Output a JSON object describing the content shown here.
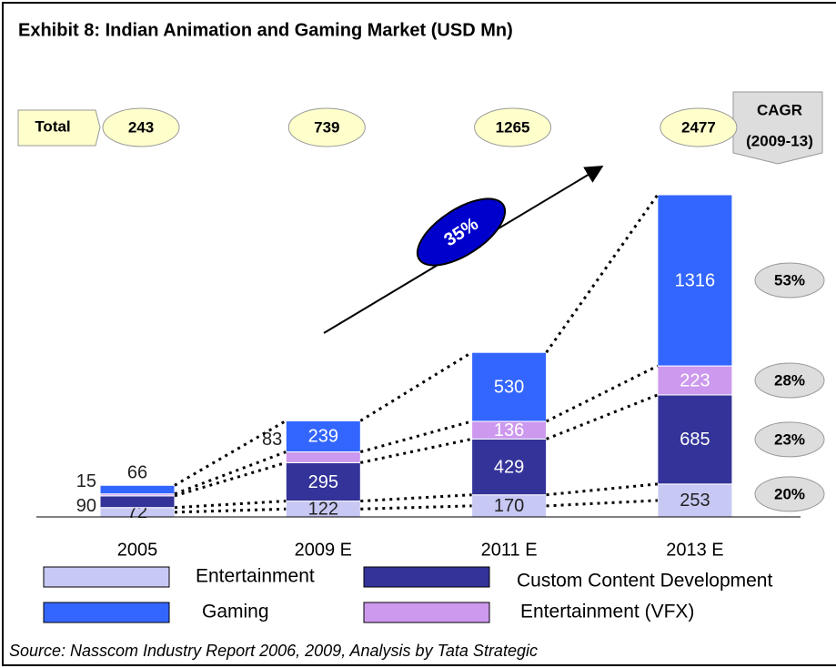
{
  "chart_data": {
    "type": "stacked_bar",
    "title": "Exhibit 8: Indian Animation and Gaming Market (USD Mn)",
    "source": "Source: Nasscom Industry Report 2006, 2009, Analysis by Tata Strategic",
    "categories": [
      "2005",
      "2009 E",
      "2011 E",
      "2013 E"
    ],
    "totals_label": "Total",
    "totals": [
      243,
      739,
      1265,
      2477
    ],
    "cagr_title": "CAGR",
    "cagr_period": "(2009-13)",
    "overall_cagr": "35%",
    "series": [
      {
        "name": "Entertainment",
        "color": "#c8c8f4",
        "values": [
          72,
          122,
          170,
          253
        ],
        "cagr": "20%"
      },
      {
        "name": "Custom Content Development",
        "color": "#333399",
        "values": [
          90,
          295,
          429,
          685
        ],
        "cagr": "23%"
      },
      {
        "name": "Entertainment (VFX)",
        "color": "#cc99ee",
        "values": [
          15,
          83,
          136,
          223
        ],
        "cagr": "28%"
      },
      {
        "name": "Gaming",
        "color": "#3366ff",
        "values": [
          66,
          239,
          530,
          1316
        ],
        "cagr": "53%"
      }
    ]
  }
}
